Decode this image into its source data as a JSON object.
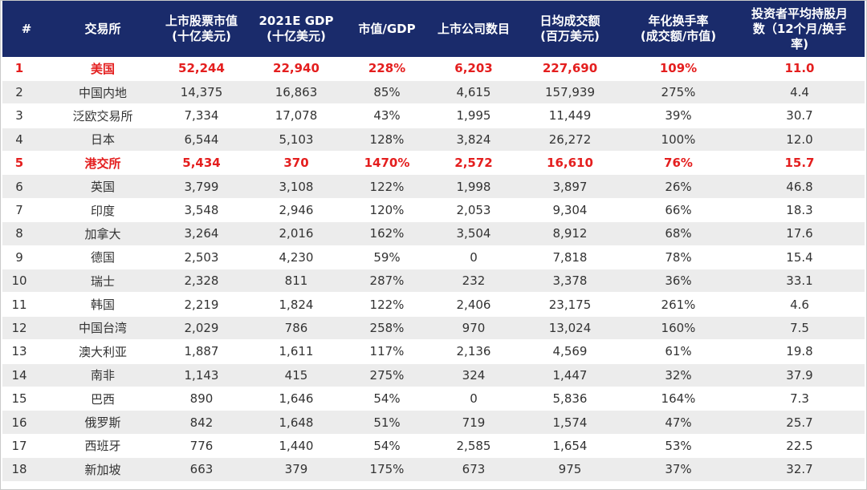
{
  "columns": [
    {
      "lines": [
        "#"
      ]
    },
    {
      "lines": [
        "交易所"
      ]
    },
    {
      "lines": [
        "上市股票市值",
        "(十亿美元)"
      ]
    },
    {
      "lines": [
        "2021E GDP",
        "(十亿美元)"
      ]
    },
    {
      "lines": [
        "市值/GDP"
      ]
    },
    {
      "lines": [
        "上市公司数目"
      ]
    },
    {
      "lines": [
        "日均成交额",
        "(百万美元)"
      ]
    },
    {
      "lines": [
        "年化换手率",
        "(成交额/市值)"
      ]
    },
    {
      "lines": [
        "投资者平均持股月",
        "数（12个月/换手",
        "率)"
      ]
    }
  ],
  "highlight_color": "#e41e1e",
  "header_bg": "#1a2b6b",
  "rows": [
    {
      "rank": "1",
      "exchange": "美国",
      "market_cap": "52,244",
      "gdp": "22,940",
      "cap_gdp": "228%",
      "listed": "6,203",
      "daily_turnover": "227,690",
      "turnover_rate": "109%",
      "holding_months": "11.0",
      "highlight": true
    },
    {
      "rank": "2",
      "exchange": "中国内地",
      "market_cap": "14,375",
      "gdp": "16,863",
      "cap_gdp": "85%",
      "listed": "4,615",
      "daily_turnover": "157,939",
      "turnover_rate": "275%",
      "holding_months": "4.4",
      "highlight": false
    },
    {
      "rank": "3",
      "exchange": "泛欧交易所",
      "market_cap": "7,334",
      "gdp": "17,078",
      "cap_gdp": "43%",
      "listed": "1,995",
      "daily_turnover": "11,449",
      "turnover_rate": "39%",
      "holding_months": "30.7",
      "highlight": false
    },
    {
      "rank": "4",
      "exchange": "日本",
      "market_cap": "6,544",
      "gdp": "5,103",
      "cap_gdp": "128%",
      "listed": "3,824",
      "daily_turnover": "26,272",
      "turnover_rate": "100%",
      "holding_months": "12.0",
      "highlight": false
    },
    {
      "rank": "5",
      "exchange": "港交所",
      "market_cap": "5,434",
      "gdp": "370",
      "cap_gdp": "1470%",
      "listed": "2,572",
      "daily_turnover": "16,610",
      "turnover_rate": "76%",
      "holding_months": "15.7",
      "highlight": true
    },
    {
      "rank": "6",
      "exchange": "英国",
      "market_cap": "3,799",
      "gdp": "3,108",
      "cap_gdp": "122%",
      "listed": "1,998",
      "daily_turnover": "3,897",
      "turnover_rate": "26%",
      "holding_months": "46.8",
      "highlight": false
    },
    {
      "rank": "7",
      "exchange": "印度",
      "market_cap": "3,548",
      "gdp": "2,946",
      "cap_gdp": "120%",
      "listed": "2,053",
      "daily_turnover": "9,304",
      "turnover_rate": "66%",
      "holding_months": "18.3",
      "highlight": false
    },
    {
      "rank": "8",
      "exchange": "加拿大",
      "market_cap": "3,264",
      "gdp": "2,016",
      "cap_gdp": "162%",
      "listed": "3,504",
      "daily_turnover": "8,912",
      "turnover_rate": "68%",
      "holding_months": "17.6",
      "highlight": false
    },
    {
      "rank": "9",
      "exchange": "德国",
      "market_cap": "2,503",
      "gdp": "4,230",
      "cap_gdp": "59%",
      "listed": "0",
      "daily_turnover": "7,818",
      "turnover_rate": "78%",
      "holding_months": "15.4",
      "highlight": false
    },
    {
      "rank": "10",
      "exchange": "瑞士",
      "market_cap": "2,328",
      "gdp": "811",
      "cap_gdp": "287%",
      "listed": "232",
      "daily_turnover": "3,378",
      "turnover_rate": "36%",
      "holding_months": "33.1",
      "highlight": false
    },
    {
      "rank": "11",
      "exchange": "韩国",
      "market_cap": "2,219",
      "gdp": "1,824",
      "cap_gdp": "122%",
      "listed": "2,406",
      "daily_turnover": "23,175",
      "turnover_rate": "261%",
      "holding_months": "4.6",
      "highlight": false
    },
    {
      "rank": "12",
      "exchange": "中国台湾",
      "market_cap": "2,029",
      "gdp": "786",
      "cap_gdp": "258%",
      "listed": "970",
      "daily_turnover": "13,024",
      "turnover_rate": "160%",
      "holding_months": "7.5",
      "highlight": false
    },
    {
      "rank": "13",
      "exchange": "澳大利亚",
      "market_cap": "1,887",
      "gdp": "1,611",
      "cap_gdp": "117%",
      "listed": "2,136",
      "daily_turnover": "4,569",
      "turnover_rate": "61%",
      "holding_months": "19.8",
      "highlight": false
    },
    {
      "rank": "14",
      "exchange": "南非",
      "market_cap": "1,143",
      "gdp": "415",
      "cap_gdp": "275%",
      "listed": "324",
      "daily_turnover": "1,447",
      "turnover_rate": "32%",
      "holding_months": "37.9",
      "highlight": false
    },
    {
      "rank": "15",
      "exchange": "巴西",
      "market_cap": "890",
      "gdp": "1,646",
      "cap_gdp": "54%",
      "listed": "0",
      "daily_turnover": "5,836",
      "turnover_rate": "164%",
      "holding_months": "7.3",
      "highlight": false
    },
    {
      "rank": "16",
      "exchange": "俄罗斯",
      "market_cap": "842",
      "gdp": "1,648",
      "cap_gdp": "51%",
      "listed": "719",
      "daily_turnover": "1,574",
      "turnover_rate": "47%",
      "holding_months": "25.7",
      "highlight": false
    },
    {
      "rank": "17",
      "exchange": "西班牙",
      "market_cap": "776",
      "gdp": "1,440",
      "cap_gdp": "54%",
      "listed": "2,585",
      "daily_turnover": "1,654",
      "turnover_rate": "53%",
      "holding_months": "22.5",
      "highlight": false
    },
    {
      "rank": "18",
      "exchange": "新加坡",
      "market_cap": "663",
      "gdp": "379",
      "cap_gdp": "175%",
      "listed": "673",
      "daily_turnover": "975",
      "turnover_rate": "37%",
      "holding_months": "32.7",
      "highlight": false
    }
  ]
}
